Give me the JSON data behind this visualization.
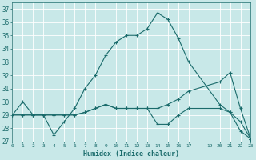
{
  "xlabel": "Humidex (Indice chaleur)",
  "ylabel": "",
  "bg_color": "#c8e8e8",
  "grid_color": "#b0d8d8",
  "line_color": "#1a6b6b",
  "xlim": [
    0,
    23
  ],
  "ylim": [
    27,
    37.5
  ],
  "yticks": [
    27,
    28,
    29,
    30,
    31,
    32,
    33,
    34,
    35,
    36,
    37
  ],
  "xtick_positions": [
    0,
    1,
    2,
    3,
    4,
    5,
    6,
    7,
    8,
    9,
    10,
    11,
    12,
    13,
    14,
    15,
    16,
    17,
    19,
    20,
    21,
    22,
    23
  ],
  "xtick_labels": [
    "0",
    "1",
    "2",
    "3",
    "4",
    "5",
    "6",
    "7",
    "8",
    "9",
    "10",
    "11",
    "12",
    "13",
    "14",
    "15",
    "16",
    "17",
    "19",
    "20",
    "21",
    "22",
    "23"
  ],
  "lines": [
    {
      "x": [
        0,
        1,
        2,
        3,
        4,
        5,
        6,
        7,
        8,
        9,
        10,
        11,
        12,
        13,
        14,
        15,
        16,
        17,
        20,
        21,
        22,
        23
      ],
      "y": [
        29,
        30,
        29,
        29,
        27.5,
        28.5,
        29.5,
        31,
        32,
        33.5,
        34.5,
        35,
        35,
        35.5,
        36.7,
        36.2,
        34.8,
        33,
        29.8,
        29.2,
        28.5,
        27.2
      ]
    },
    {
      "x": [
        0,
        1,
        2,
        3,
        4,
        5,
        6,
        7,
        8,
        9,
        10,
        11,
        12,
        13,
        14,
        15,
        16,
        17,
        20,
        21,
        22,
        23
      ],
      "y": [
        29,
        29,
        29,
        29,
        29,
        29,
        29,
        29.2,
        29.5,
        29.8,
        29.5,
        29.5,
        29.5,
        29.5,
        28.3,
        28.3,
        29,
        29.5,
        29.5,
        29.2,
        27.8,
        27.2
      ]
    },
    {
      "x": [
        0,
        1,
        2,
        3,
        4,
        5,
        6,
        7,
        8,
        9,
        10,
        11,
        12,
        13,
        14,
        15,
        16,
        17,
        20,
        21,
        22,
        23
      ],
      "y": [
        29,
        29,
        29,
        29,
        29,
        29,
        29,
        29.2,
        29.5,
        29.8,
        29.5,
        29.5,
        29.5,
        29.5,
        29.5,
        29.8,
        30.2,
        30.8,
        31.5,
        32.2,
        29.5,
        27.2
      ]
    }
  ]
}
